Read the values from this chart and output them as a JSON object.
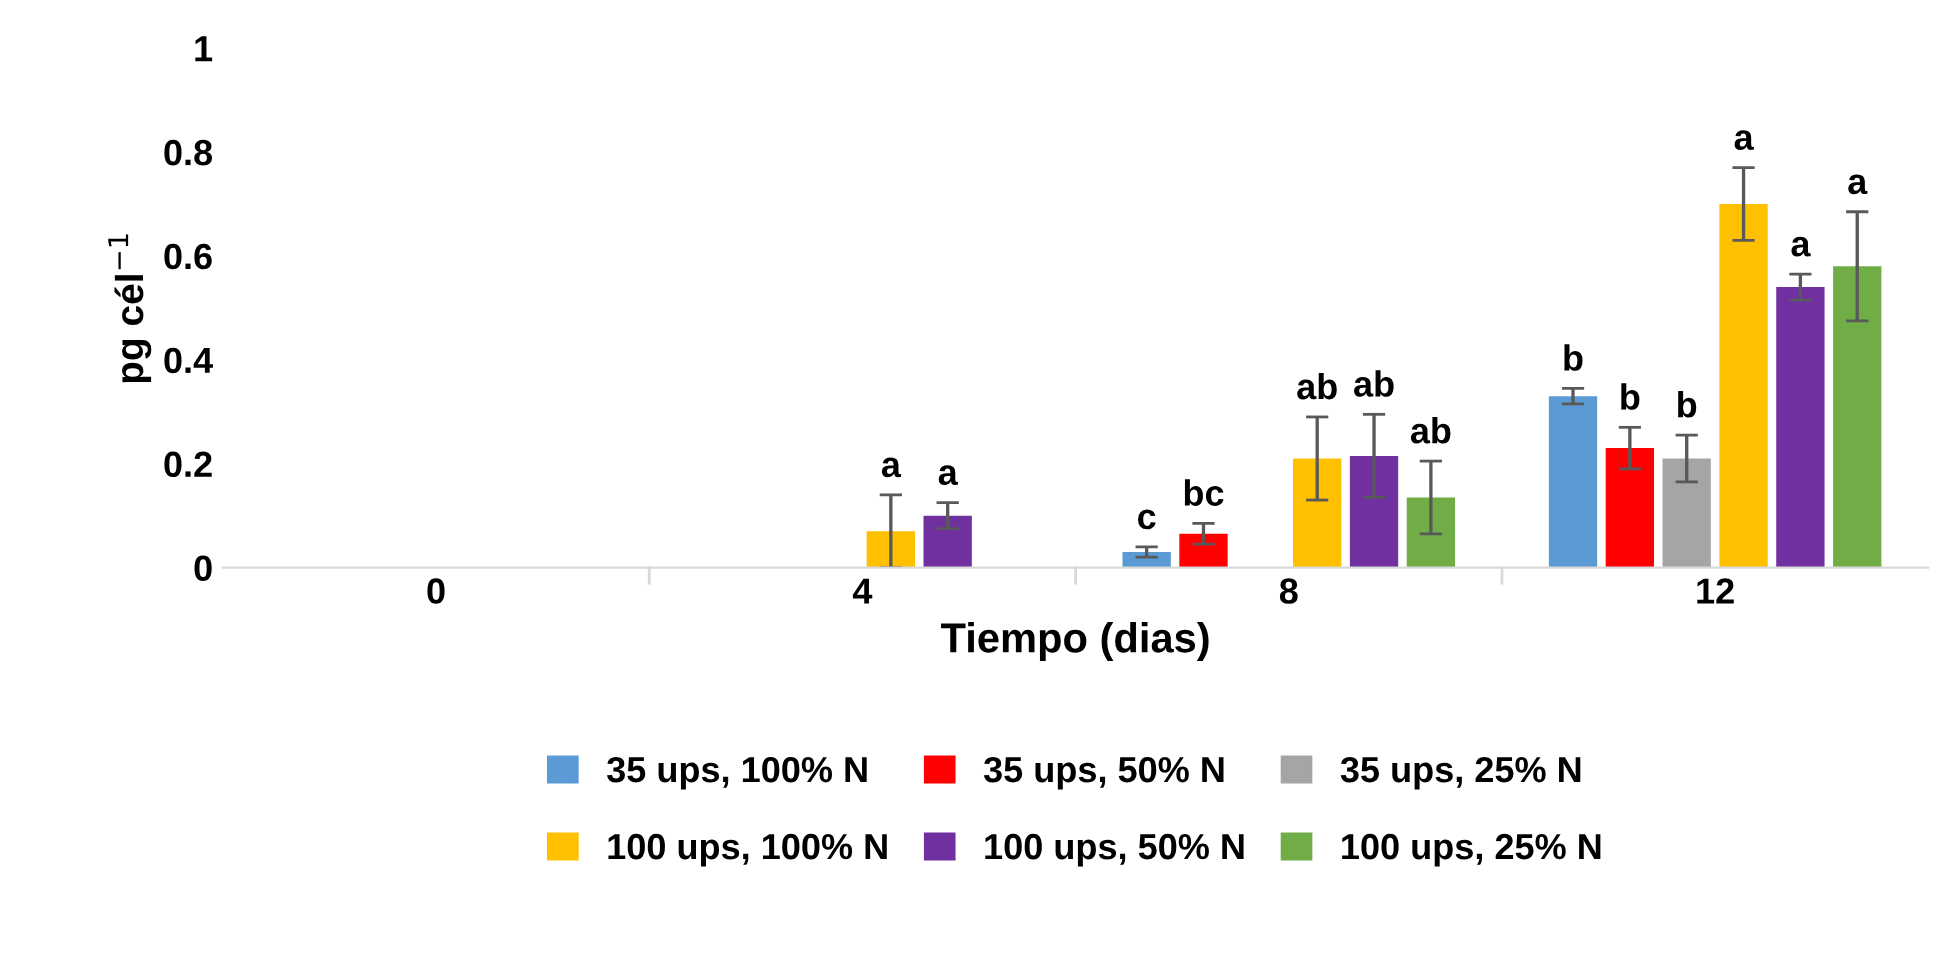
{
  "chart_data": {
    "type": "bar",
    "xlabel": "Tiempo (dias)",
    "ylabel": "pg cél$^{−1}$",
    "categories": [
      "0",
      "4",
      "8",
      "12"
    ],
    "ylim": [
      0,
      1
    ],
    "yticks": [
      0,
      {
        "value": 0.2,
        "label": "0.2"
      },
      {
        "value": 0.4,
        "label": "0.4"
      },
      {
        "value": 0.6,
        "label": "0.6"
      },
      {
        "value": 0.8,
        "label": "0.8"
      },
      1
    ],
    "grid": false,
    "legend": "bottom",
    "series": [
      {
        "name": "35 ups, 100% N",
        "color": "#5b9bd5",
        "values": [
          0,
          0,
          0.03,
          0.33
        ],
        "errors": [
          null,
          null,
          0.01,
          0.015
        ],
        "value_labels": [
          null,
          null,
          "c",
          "b"
        ]
      },
      {
        "name": "35 ups, 50% N",
        "color": "#ff0000",
        "values": [
          0,
          0,
          0.065,
          0.23
        ],
        "errors": [
          null,
          null,
          0.02,
          0.04
        ],
        "value_labels": [
          null,
          null,
          "bc",
          "b"
        ]
      },
      {
        "name": "35 ups, 25% N",
        "color": "#a5a5a5",
        "values": [
          0,
          0,
          0,
          0.21
        ],
        "errors": [
          null,
          null,
          null,
          0.045
        ],
        "value_labels": [
          null,
          null,
          null,
          "b"
        ]
      },
      {
        "name": "100 ups, 100% N",
        "color": "#ffc000",
        "values": [
          0,
          0.07,
          0.21,
          0.7
        ],
        "errors": [
          null,
          0.07,
          0.08,
          0.07
        ],
        "value_labels": [
          null,
          "a",
          "ab",
          "a"
        ]
      },
      {
        "name": "100 ups, 50% N",
        "color": "#7030a0",
        "values": [
          0,
          0.1,
          0.215,
          0.54
        ],
        "errors": [
          null,
          0.025,
          0.08,
          0.025
        ],
        "value_labels": [
          null,
          "a",
          "ab",
          "a"
        ]
      },
      {
        "name": "100 ups, 25% N",
        "color": "#70ad47",
        "values": [
          0,
          0,
          0.135,
          0.58
        ],
        "errors": [
          null,
          null,
          0.07,
          0.105
        ],
        "value_labels": [
          null,
          null,
          "ab",
          "a"
        ]
      }
    ]
  }
}
